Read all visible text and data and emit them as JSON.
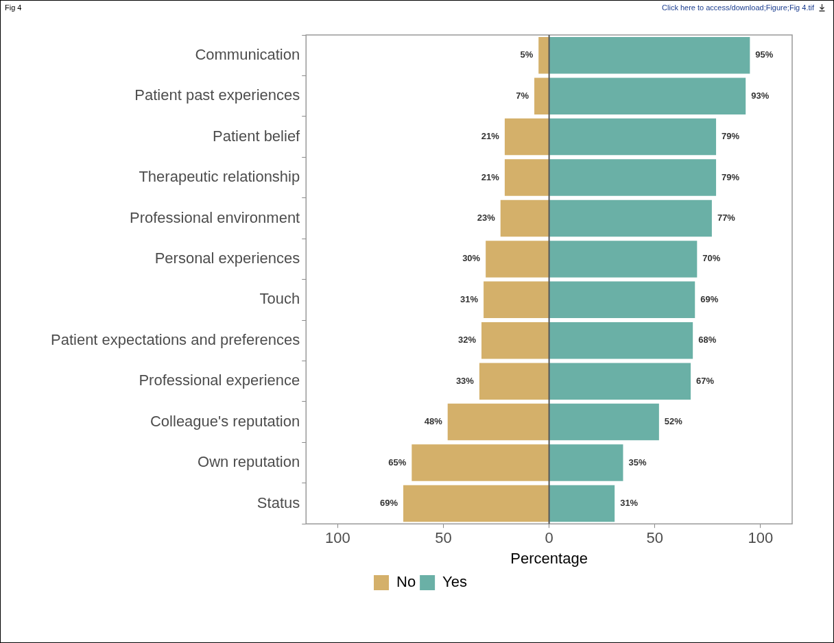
{
  "chart_data": {
    "type": "bar",
    "orientation": "horizontal",
    "categories": [
      "Communication",
      "Patient past experiences",
      "Patient belief",
      "Therapeutic relationship",
      "Professional environment",
      "Personal experiences",
      "Touch",
      "Patient expectations and preferences",
      "Professional experience",
      "Colleague's reputation",
      "Own reputation",
      "Status"
    ],
    "series": [
      {
        "name": "No",
        "color": "#d4b06a",
        "values": [
          5,
          7,
          21,
          21,
          23,
          30,
          31,
          32,
          33,
          48,
          65,
          69
        ],
        "base": [
          -5,
          -7,
          -21,
          -21,
          -23,
          -30,
          -31,
          -32,
          -33,
          -48,
          -65,
          -69
        ],
        "value_labels": [
          "5%",
          "7%",
          "21%",
          "21%",
          "23%",
          "30%",
          "31%",
          "32%",
          "33%",
          "48%",
          "65%",
          "69%"
        ]
      },
      {
        "name": "Yes",
        "color": "#6ab0a6",
        "values": [
          95,
          93,
          79,
          79,
          77,
          70,
          69,
          68,
          67,
          52,
          35,
          31
        ],
        "value_labels": [
          "95%",
          "93%",
          "79%",
          "79%",
          "77%",
          "70%",
          "69%",
          "68%",
          "67%",
          "52%",
          "35%",
          "31%"
        ]
      }
    ],
    "xlabel": "Percentage",
    "xlim": [
      -115,
      115
    ],
    "xticks": [
      {
        "value": -100,
        "label": "100"
      },
      {
        "value": -50,
        "label": "50"
      },
      0,
      50,
      100
    ],
    "ref_lines": [
      {
        "axis": "x",
        "value": 0,
        "color": "#555555"
      }
    ],
    "grid": false,
    "legend": "bottom",
    "annotations": [
      "Fig 4",
      "Click here to access/download;Figure;Fig 4.tif"
    ]
  }
}
